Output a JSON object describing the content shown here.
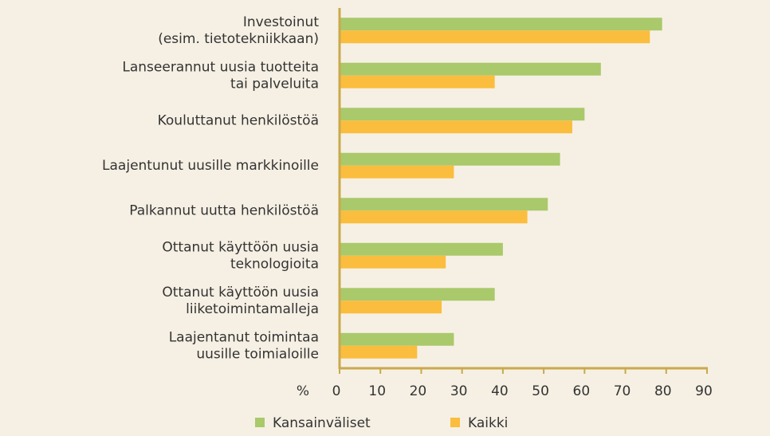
{
  "chart_data": {
    "type": "barh",
    "categories": [
      [
        "Investoinut",
        "(esim. tietotekniikkaan)"
      ],
      [
        "Lanseerannut uusia tuotteita",
        "tai palveluita"
      ],
      [
        "Kouluttanut henkilöstöä"
      ],
      [
        "Laajentunut uusille markkinoille"
      ],
      [
        "Palkannut uutta henkilöstöä"
      ],
      [
        "Ottanut käyttöön uusia",
        "teknologioita"
      ],
      [
        "Ottanut käyttöön uusia",
        "liiketoimintamalleja"
      ],
      [
        "Laajentanut toimintaa",
        "uusille toimialoille"
      ]
    ],
    "series": [
      {
        "name": "Kansainväliset",
        "color": "#a9c96b",
        "values": [
          79,
          64,
          60,
          54,
          51,
          40,
          38,
          28
        ]
      },
      {
        "name": "Kaikki",
        "color": "#fbbd3d",
        "values": [
          76,
          38,
          57,
          28,
          46,
          26,
          25,
          19
        ]
      }
    ],
    "xlabel": "%",
    "xlim": [
      0,
      90
    ],
    "xticks": [
      0,
      10,
      20,
      30,
      40,
      50,
      60,
      70,
      80,
      90
    ],
    "legend": "bottom",
    "axis_color": "#c9a94c"
  }
}
